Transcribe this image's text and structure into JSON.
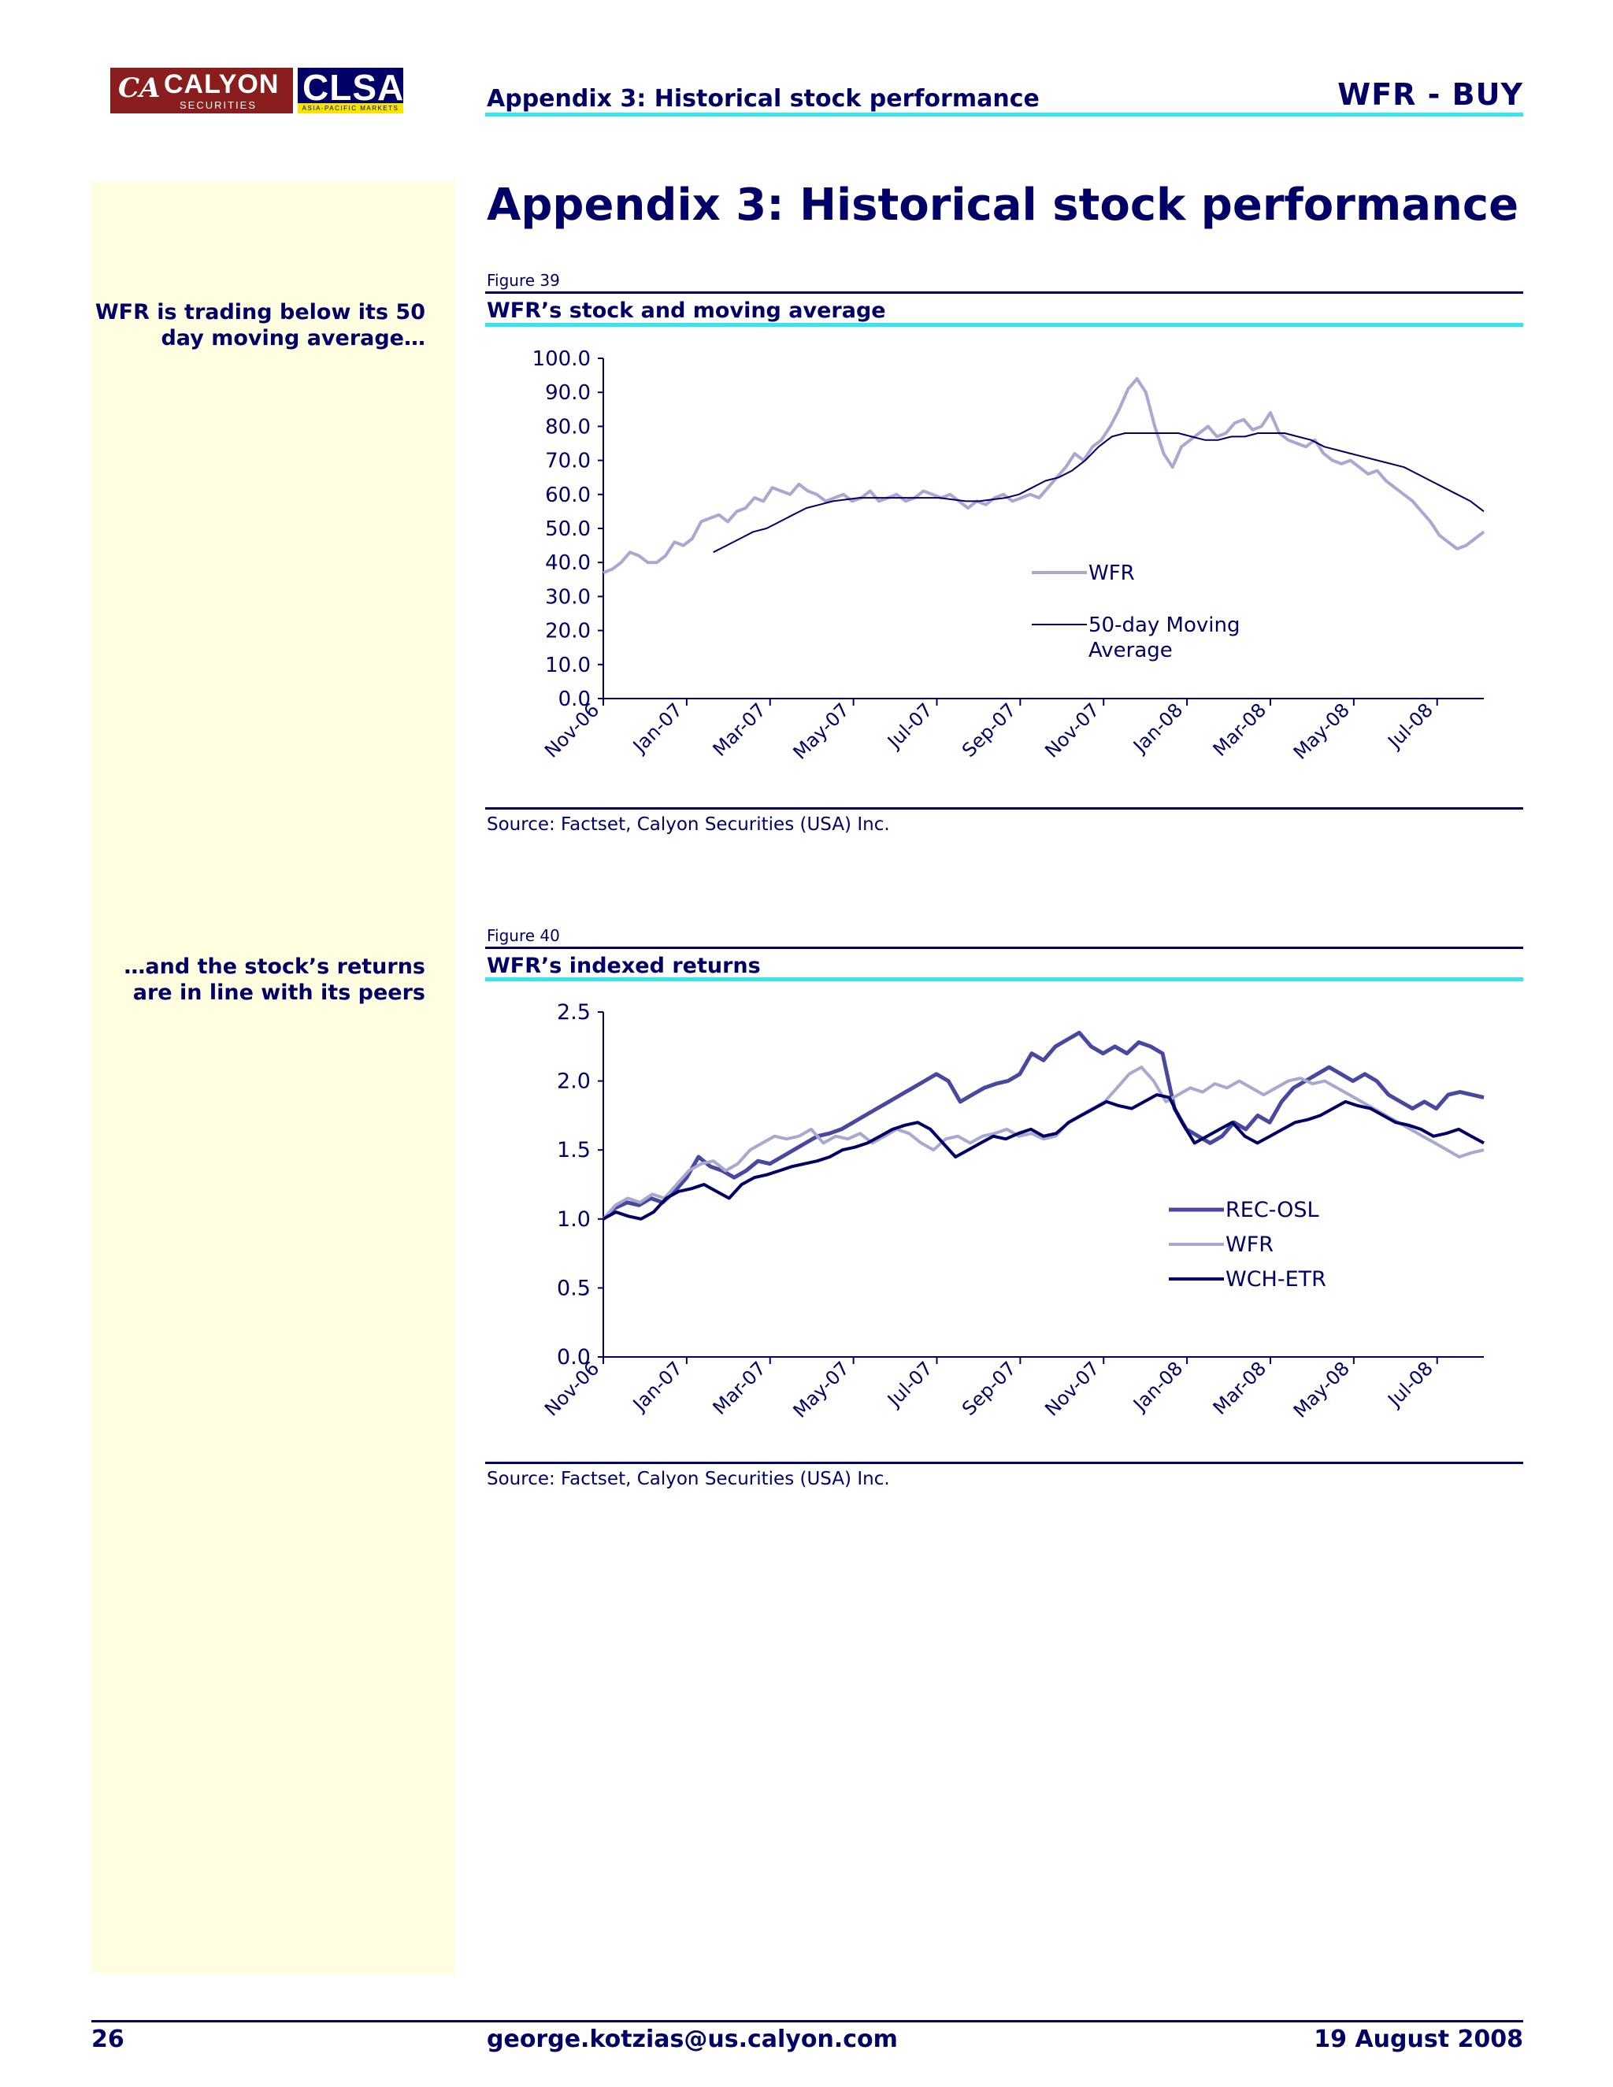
{
  "header": {
    "logo_calyon": "CALYON",
    "logo_calyon_sub": "SECURITIES",
    "logo_clsa": "CLSA",
    "logo_clsa_sub": "ASIA-PACIFIC MARKETS",
    "section": "Appendix 3: Historical stock performance",
    "stock": "WFR - BUY"
  },
  "page_title": "Appendix 3: Historical stock performance",
  "sidebar": {
    "note1": "WFR is trading below its 50 day moving average…",
    "note2": "…and the stock’s returns are in line with its peers"
  },
  "figures": [
    {
      "number": "Figure 39",
      "title": "WFR’s stock and moving average",
      "source": "Source: Factset, Calyon Securities (USA) Inc."
    },
    {
      "number": "Figure 40",
      "title": "WFR’s indexed returns",
      "source": "Source: Factset, Calyon Securities (USA) Inc."
    }
  ],
  "colors": {
    "navy": "#000066",
    "lavender": "#a8a8d0",
    "royal": "#4848a0",
    "cyan": "#33e6f0",
    "sidebar": "#fffee0"
  },
  "chart_data": [
    {
      "type": "line",
      "x_ticks": [
        "Nov-06",
        "Jan-07",
        "Mar-07",
        "May-07",
        "Jul-07",
        "Sep-07",
        "Nov-07",
        "Jan-08",
        "Mar-08",
        "May-08",
        "Jul-08"
      ],
      "y_ticks": [
        "100.0",
        "90.0",
        "80.0",
        "70.0",
        "60.0",
        "50.0",
        "40.0",
        "30.0",
        "20.0",
        "10.0",
        "0.0"
      ],
      "ylim": [
        0,
        100
      ],
      "legend_position": "center-right",
      "series": [
        {
          "name": "WFR",
          "color": "#a8a8d0",
          "width": 4,
          "start_t": 0,
          "values": [
            37,
            38,
            40,
            43,
            42,
            40,
            40,
            42,
            46,
            45,
            47,
            52,
            53,
            54,
            52,
            55,
            56,
            59,
            58,
            62,
            61,
            60,
            63,
            61,
            60,
            58,
            59,
            60,
            58,
            59,
            61,
            58,
            59,
            60,
            58,
            59,
            61,
            60,
            59,
            60,
            58,
            56,
            58,
            57,
            59,
            60,
            58,
            59,
            60,
            59,
            62,
            65,
            68,
            72,
            70,
            74,
            76,
            80,
            85,
            91,
            94,
            90,
            80,
            72,
            68,
            74,
            76,
            78,
            80,
            77,
            78,
            81,
            82,
            79,
            80,
            84,
            78,
            76,
            75,
            74,
            76,
            72,
            70,
            69,
            70,
            68,
            66,
            67,
            64,
            62,
            60,
            58,
            55,
            52,
            48,
            46,
            44,
            45,
            47,
            49
          ]
        },
        {
          "name": "50-day Moving Average",
          "color": "#000066",
          "width": 2,
          "start_t": 0.125,
          "values": [
            43,
            45,
            47,
            49,
            50,
            52,
            54,
            56,
            57,
            58,
            58.5,
            59,
            59,
            59,
            59,
            59,
            59,
            59,
            58.5,
            58,
            58,
            58.5,
            59,
            60,
            62,
            64,
            65,
            67,
            70,
            74,
            77,
            78,
            78,
            78,
            78,
            78,
            77,
            76,
            76,
            77,
            77,
            78,
            78,
            78,
            77,
            76,
            74,
            73,
            72,
            71,
            70,
            69,
            68,
            66,
            64,
            62,
            60,
            58,
            55
          ]
        }
      ]
    },
    {
      "type": "line",
      "x_ticks": [
        "Nov-06",
        "Jan-07",
        "Mar-07",
        "May-07",
        "Jul-07",
        "Sep-07",
        "Nov-07",
        "Jan-08",
        "Mar-08",
        "May-08",
        "Jul-08"
      ],
      "y_ticks": [
        "2.5",
        "2.0",
        "1.5",
        "1.0",
        "0.5",
        "0.0"
      ],
      "ylim": [
        0,
        2.5
      ],
      "legend_position": "center-right",
      "series": [
        {
          "name": "REC-OSL",
          "color": "#4848a0",
          "width": 5,
          "start_t": 0,
          "values": [
            1.0,
            1.08,
            1.12,
            1.1,
            1.15,
            1.12,
            1.2,
            1.3,
            1.45,
            1.38,
            1.35,
            1.3,
            1.35,
            1.42,
            1.4,
            1.45,
            1.5,
            1.55,
            1.6,
            1.62,
            1.65,
            1.7,
            1.75,
            1.8,
            1.85,
            1.9,
            1.95,
            2.0,
            2.05,
            2.0,
            1.85,
            1.9,
            1.95,
            1.98,
            2.0,
            2.05,
            2.2,
            2.15,
            2.25,
            2.3,
            2.35,
            2.25,
            2.2,
            2.25,
            2.2,
            2.28,
            2.25,
            2.2,
            1.8,
            1.65,
            1.6,
            1.55,
            1.6,
            1.7,
            1.65,
            1.75,
            1.7,
            1.85,
            1.95,
            2.0,
            2.05,
            2.1,
            2.05,
            2.0,
            2.05,
            2.0,
            1.9,
            1.85,
            1.8,
            1.85,
            1.8,
            1.9,
            1.92,
            1.9,
            1.88
          ]
        },
        {
          "name": "WFR",
          "color": "#a8a8d0",
          "width": 4,
          "start_t": 0,
          "values": [
            1.0,
            1.1,
            1.15,
            1.12,
            1.18,
            1.15,
            1.25,
            1.35,
            1.4,
            1.42,
            1.35,
            1.4,
            1.5,
            1.55,
            1.6,
            1.58,
            1.6,
            1.65,
            1.55,
            1.6,
            1.58,
            1.62,
            1.55,
            1.6,
            1.65,
            1.62,
            1.55,
            1.5,
            1.58,
            1.6,
            1.55,
            1.6,
            1.62,
            1.65,
            1.6,
            1.62,
            1.58,
            1.6,
            1.7,
            1.75,
            1.8,
            1.85,
            1.95,
            2.05,
            2.1,
            2.0,
            1.85,
            1.9,
            1.95,
            1.92,
            1.98,
            1.95,
            2.0,
            1.95,
            1.9,
            1.95,
            2.0,
            2.02,
            1.98,
            2.0,
            1.95,
            1.9,
            1.85,
            1.8,
            1.75,
            1.7,
            1.65,
            1.6,
            1.55,
            1.5,
            1.45,
            1.48,
            1.5
          ]
        },
        {
          "name": "WCH-ETR",
          "color": "#000066",
          "width": 4,
          "start_t": 0,
          "values": [
            1.0,
            1.05,
            1.02,
            1.0,
            1.05,
            1.15,
            1.2,
            1.22,
            1.25,
            1.2,
            1.15,
            1.25,
            1.3,
            1.32,
            1.35,
            1.38,
            1.4,
            1.42,
            1.45,
            1.5,
            1.52,
            1.55,
            1.6,
            1.65,
            1.68,
            1.7,
            1.65,
            1.55,
            1.45,
            1.5,
            1.55,
            1.6,
            1.58,
            1.62,
            1.65,
            1.6,
            1.62,
            1.7,
            1.75,
            1.8,
            1.85,
            1.82,
            1.8,
            1.85,
            1.9,
            1.88,
            1.7,
            1.55,
            1.6,
            1.65,
            1.7,
            1.6,
            1.55,
            1.6,
            1.65,
            1.7,
            1.72,
            1.75,
            1.8,
            1.85,
            1.82,
            1.8,
            1.75,
            1.7,
            1.68,
            1.65,
            1.6,
            1.62,
            1.65,
            1.6,
            1.55
          ]
        }
      ]
    }
  ],
  "footer": {
    "page": "26",
    "email": "george.kotzias@us.calyon.com",
    "date": "19 August 2008"
  }
}
